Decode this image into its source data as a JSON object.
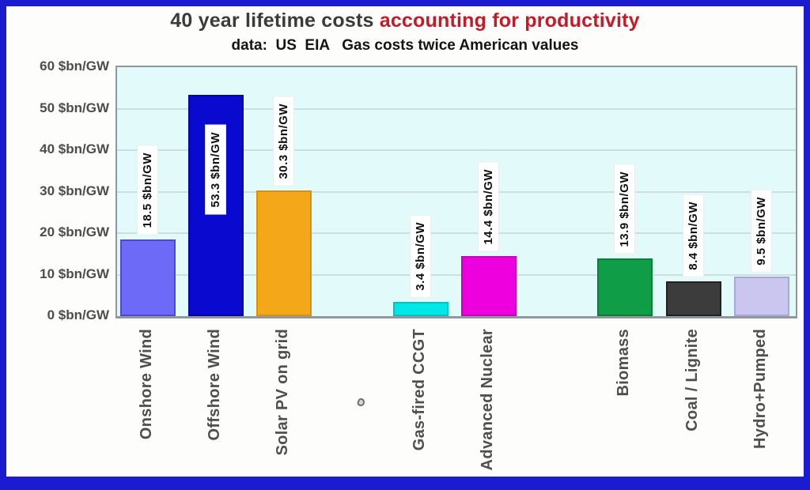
{
  "frame": {
    "border_color": "#1b1bd1"
  },
  "title": {
    "part1": "40 year lifetime costs ",
    "part2": "accounting for productivity",
    "part1_color": "#3b3b3b",
    "part2_color": "#c51a28"
  },
  "subtitle": "data:  US  EIA   Gas costs twice American values",
  "chart_data": {
    "type": "bar",
    "title": "40 year lifetime costs accounting for productivity",
    "subtitle": "data: US EIA  Gas costs twice American values",
    "xlabel": "",
    "ylabel": "$bn/GW",
    "ylim": [
      0,
      60
    ],
    "grid": true,
    "legend": "none",
    "plot_background": "#e3fafb",
    "y_ticks": [
      0,
      10,
      20,
      30,
      40,
      50,
      60
    ],
    "y_tick_labels": [
      "0 $bn/GW",
      "10 $bn/GW",
      "20 $bn/GW",
      "30 $bn/GW",
      "40 $bn/GW",
      "50 $bn/GW",
      "60 $bn/GW"
    ],
    "categories": [
      "Onshore Wind",
      "Offshore Wind",
      "Solar PV on grid",
      "Gas-fired CCGT",
      "Advanced Nuclear",
      "Biomass",
      "Coal / Lignite",
      "Hydro+Pumped"
    ],
    "values": [
      18.5,
      53.3,
      30.3,
      3.4,
      14.4,
      13.9,
      8.4,
      9.5
    ],
    "bars": [
      {
        "category": "Onshore Wind",
        "value": 18.5,
        "label": "18.5 $bn/GW",
        "color": "#6e6af8",
        "border": "#4b48d8",
        "slot": 0,
        "label_inside": false
      },
      {
        "category": "Offshore Wind",
        "value": 53.3,
        "label": "53.3 $bn/GW",
        "color": "#0909d0",
        "border": "#0505a0",
        "slot": 1,
        "label_inside": true
      },
      {
        "category": "Solar PV on grid",
        "value": 30.3,
        "label": "30.3 $bn/GW",
        "color": "#f5a71a",
        "border": "#d8910e",
        "slot": 2,
        "label_inside": false
      },
      {
        "category": "Gas-fired CCGT",
        "value": 3.4,
        "label": "3.4 $bn/GW",
        "color": "#00e7e7",
        "border": "#00c2c2",
        "slot": 4,
        "label_inside": false
      },
      {
        "category": "Advanced Nuclear",
        "value": 14.4,
        "label": "14.4 $bn/GW",
        "color": "#ee00de",
        "border": "#c600ba",
        "slot": 5,
        "label_inside": false
      },
      {
        "category": "Biomass",
        "value": 13.9,
        "label": "13.9 $bn/GW",
        "color": "#0f9e47",
        "border": "#0b7d38",
        "slot": 7,
        "label_inside": false
      },
      {
        "category": "Coal / Lignite",
        "value": 8.4,
        "label": "8.4 $bn/GW",
        "color": "#3c3c3c",
        "border": "#202020",
        "slot": 8,
        "label_inside": false
      },
      {
        "category": "Hydro+Pumped",
        "value": 9.5,
        "label": "9.5 $bn/GW",
        "color": "#cac6f0",
        "border": "#a9a5de",
        "slot": 9,
        "label_inside": false
      }
    ]
  }
}
